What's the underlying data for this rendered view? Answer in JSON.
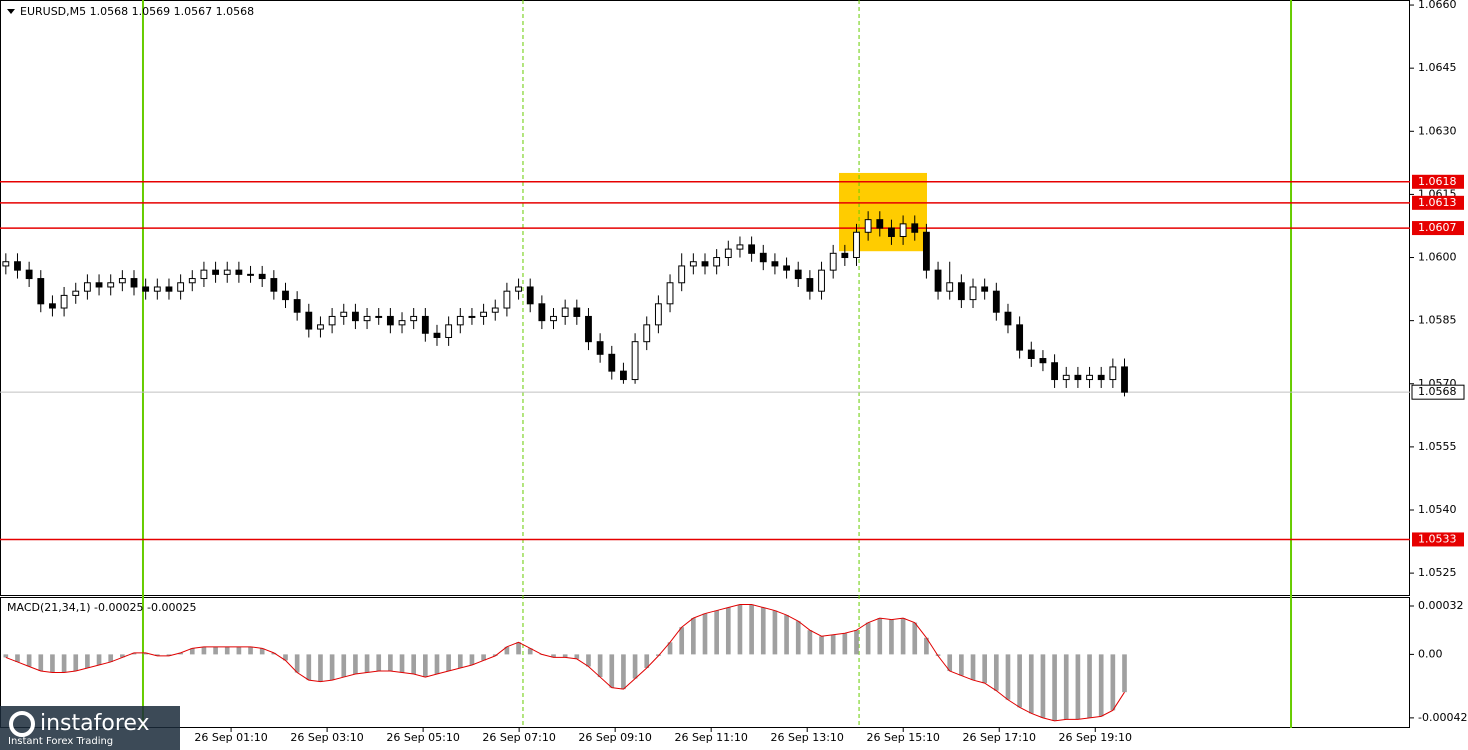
{
  "chart_data": {
    "type": "candlestick",
    "title": "EURUSD,M5  1.0568 1.0569 1.0567 1.0568",
    "ylim": [
      1.05198,
      1.06612
    ],
    "yticks": [
      1.0525,
      {
        "value": 1.054,
        "label": "1.0540"
      },
      1.0555,
      {
        "value": 1.057,
        "label": "1.0570"
      },
      1.0585,
      {
        "value": 1.06,
        "label": "1.0600"
      },
      1.0615,
      {
        "value": 1.063,
        "label": "1.0630"
      },
      1.0645,
      {
        "value": 1.066,
        "label": "1.0660"
      }
    ],
    "xlim": [
      0,
      121
    ],
    "xticks": [
      {
        "value": 19.83,
        "label": "26 Sep 01:10"
      },
      {
        "value": 28.07,
        "label": "26 Sep 03:10"
      },
      {
        "value": 36.31,
        "label": "26 Sep 05:10"
      },
      {
        "value": 44.55,
        "label": "26 Sep 07:10"
      },
      {
        "value": 52.79,
        "label": "26 Sep 09:10"
      },
      {
        "value": 61.03,
        "label": "26 Sep 11:10"
      },
      {
        "value": 69.27,
        "label": "26 Sep 13:10"
      },
      {
        "value": 77.51,
        "label": "26 Sep 15:10"
      },
      {
        "value": 85.75,
        "label": "26 Sep 17:10"
      },
      {
        "value": 93.99,
        "label": "26 Sep 19:10"
      }
    ],
    "ohlc": [
      [
        1.0598,
        1.0601,
        1.0596,
        1.0599
      ],
      [
        1.0599,
        1.0601,
        1.0595,
        1.0597
      ],
      [
        1.0597,
        1.0599,
        1.0593,
        1.0595
      ],
      [
        1.0595,
        1.0597,
        1.0587,
        1.0589
      ],
      [
        1.0589,
        1.0591,
        1.0586,
        1.0588
      ],
      [
        1.0588,
        1.0593,
        1.0586,
        1.0591
      ],
      [
        1.0591,
        1.0594,
        1.0589,
        1.0592
      ],
      [
        1.0592,
        1.0596,
        1.059,
        1.0594
      ],
      [
        1.0594,
        1.0596,
        1.0591,
        1.0593
      ],
      [
        1.0593,
        1.0596,
        1.0591,
        1.0594
      ],
      [
        1.0594,
        1.0597,
        1.0592,
        1.0595
      ],
      [
        1.0595,
        1.0597,
        1.0591,
        1.0593
      ],
      [
        1.0593,
        1.0595,
        1.059,
        1.0592
      ],
      [
        1.0592,
        1.0595,
        1.059,
        1.0593
      ],
      [
        1.0593,
        1.0595,
        1.059,
        1.0592
      ],
      [
        1.0592,
        1.0596,
        1.059,
        1.0594
      ],
      [
        1.0594,
        1.0597,
        1.0592,
        1.0595
      ],
      [
        1.0595,
        1.0599,
        1.0593,
        1.0597
      ],
      [
        1.0597,
        1.0599,
        1.0594,
        1.0596
      ],
      [
        1.0596,
        1.0599,
        1.0594,
        1.0597
      ],
      [
        1.0597,
        1.0599,
        1.0594,
        1.0596
      ],
      [
        1.0596,
        1.0598,
        1.0594,
        1.0596
      ],
      [
        1.0596,
        1.0598,
        1.0593,
        1.0595
      ],
      [
        1.0595,
        1.0597,
        1.059,
        1.0592
      ],
      [
        1.0592,
        1.0594,
        1.0588,
        1.059
      ],
      [
        1.059,
        1.0592,
        1.0585,
        1.0587
      ],
      [
        1.0587,
        1.0589,
        1.0581,
        1.0583
      ],
      [
        1.0583,
        1.0586,
        1.0581,
        1.0584
      ],
      [
        1.0584,
        1.0588,
        1.0582,
        1.0586
      ],
      [
        1.0586,
        1.0589,
        1.0584,
        1.0587
      ],
      [
        1.0587,
        1.0589,
        1.0583,
        1.0585
      ],
      [
        1.0585,
        1.0588,
        1.0583,
        1.0586
      ],
      [
        1.0586,
        1.0588,
        1.0584,
        1.0586
      ],
      [
        1.0586,
        1.0588,
        1.0582,
        1.0584
      ],
      [
        1.0584,
        1.0587,
        1.0582,
        1.0585
      ],
      [
        1.0585,
        1.0588,
        1.0583,
        1.0586
      ],
      [
        1.0586,
        1.0588,
        1.058,
        1.0582
      ],
      [
        1.0582,
        1.0584,
        1.0579,
        1.0581
      ],
      [
        1.0581,
        1.0586,
        1.0579,
        1.0584
      ],
      [
        1.0584,
        1.0588,
        1.0582,
        1.0586
      ],
      [
        1.0586,
        1.0588,
        1.0584,
        1.0586
      ],
      [
        1.0586,
        1.0589,
        1.0584,
        1.0587
      ],
      [
        1.0587,
        1.059,
        1.0585,
        1.0588
      ],
      [
        1.0588,
        1.0594,
        1.0586,
        1.0592
      ],
      [
        1.0592,
        1.0595,
        1.059,
        1.0593
      ],
      [
        1.0593,
        1.0595,
        1.0587,
        1.0589
      ],
      [
        1.0589,
        1.0591,
        1.0583,
        1.0585
      ],
      [
        1.0585,
        1.0588,
        1.0583,
        1.0586
      ],
      [
        1.0586,
        1.059,
        1.0584,
        1.0588
      ],
      [
        1.0588,
        1.059,
        1.0584,
        1.0586
      ],
      [
        1.0586,
        1.0588,
        1.0578,
        1.058
      ],
      [
        1.058,
        1.0582,
        1.0575,
        1.0577
      ],
      [
        1.0577,
        1.0579,
        1.0571,
        1.0573
      ],
      [
        1.0573,
        1.0575,
        1.057,
        1.0571
      ],
      [
        1.0571,
        1.0582,
        1.057,
        1.058
      ],
      [
        1.058,
        1.0586,
        1.0578,
        1.0584
      ],
      [
        1.0584,
        1.0591,
        1.0582,
        1.0589
      ],
      [
        1.0589,
        1.0596,
        1.0587,
        1.0594
      ],
      [
        1.0594,
        1.0601,
        1.0592,
        1.0598
      ],
      [
        1.0598,
        1.0601,
        1.0596,
        1.0599
      ],
      [
        1.0599,
        1.0601,
        1.0596,
        1.0598
      ],
      [
        1.0598,
        1.0602,
        1.0596,
        1.06
      ],
      [
        1.06,
        1.0604,
        1.0598,
        1.0602
      ],
      [
        1.0602,
        1.0605,
        1.06,
        1.0603
      ],
      [
        1.0603,
        1.0605,
        1.0599,
        1.0601
      ],
      [
        1.0601,
        1.0603,
        1.0597,
        1.0599
      ],
      [
        1.0599,
        1.0601,
        1.0596,
        1.0598
      ],
      [
        1.0598,
        1.06,
        1.0595,
        1.0597
      ],
      [
        1.0597,
        1.0599,
        1.0593,
        1.0595
      ],
      [
        1.0595,
        1.0597,
        1.059,
        1.0592
      ],
      [
        1.0592,
        1.0599,
        1.059,
        1.0597
      ],
      [
        1.0597,
        1.0603,
        1.0595,
        1.0601
      ],
      [
        1.0601,
        1.0603,
        1.0598,
        1.06
      ],
      [
        1.06,
        1.0608,
        1.0598,
        1.0606
      ],
      [
        1.0606,
        1.0611,
        1.0604,
        1.0609
      ],
      [
        1.0609,
        1.0611,
        1.0605,
        1.0607
      ],
      [
        1.0607,
        1.0609,
        1.0603,
        1.0605
      ],
      [
        1.0605,
        1.061,
        1.0603,
        1.0608
      ],
      [
        1.0608,
        1.061,
        1.0604,
        1.0606
      ],
      [
        1.0606,
        1.0608,
        1.0595,
        1.0597
      ],
      [
        1.0597,
        1.0599,
        1.059,
        1.0592
      ],
      [
        1.0592,
        1.0599,
        1.059,
        1.0594
      ],
      [
        1.0594,
        1.0596,
        1.0588,
        1.059
      ],
      [
        1.059,
        1.0595,
        1.0588,
        1.0593
      ],
      [
        1.0593,
        1.0595,
        1.059,
        1.0592
      ],
      [
        1.0592,
        1.0594,
        1.0585,
        1.0587
      ],
      [
        1.0587,
        1.0589,
        1.0582,
        1.0584
      ],
      [
        1.0584,
        1.0586,
        1.0576,
        1.0578
      ],
      [
        1.0578,
        1.058,
        1.0574,
        1.0576
      ],
      [
        1.0576,
        1.0578,
        1.0573,
        1.0575
      ],
      [
        1.0575,
        1.0577,
        1.0569,
        1.0571
      ],
      [
        1.0571,
        1.0574,
        1.0569,
        1.0572
      ],
      [
        1.0572,
        1.0574,
        1.0569,
        1.0571
      ],
      [
        1.0571,
        1.0574,
        1.0569,
        1.0572
      ],
      [
        1.0572,
        1.0574,
        1.0569,
        1.0571
      ],
      [
        1.0571,
        1.0576,
        1.0569,
        1.0574
      ],
      [
        1.0574,
        1.0576,
        1.0567,
        1.0568
      ]
    ],
    "levels": [
      {
        "value": 1.0618,
        "color": "#e60000"
      },
      {
        "value": 1.0613,
        "color": "#e60000"
      },
      {
        "value": 1.0607,
        "color": "#e60000"
      },
      {
        "value": 1.0533,
        "color": "#e60000"
      }
    ],
    "current_price": {
      "value": 1.0568,
      "color": "#c0c0c0"
    },
    "vlines": [
      {
        "x": 12.27,
        "style": "solid",
        "color": "#66cc00"
      },
      {
        "x": 44.88,
        "style": "dashed",
        "color": "#66cc00"
      },
      {
        "x": 73.72,
        "style": "dashed",
        "color": "#66cc00"
      },
      {
        "x": 110.79,
        "style": "solid",
        "color": "#66cc00"
      }
    ],
    "highlight": {
      "x": [
        72.0,
        79.55
      ],
      "y": [
        1.06015,
        1.06201
      ],
      "color": "#ffcc00"
    },
    "macd": {
      "title": "MACD(21,34,1) -0.00025 -0.00025",
      "ylim": [
        -0.000487,
        0.000373
      ],
      "yticks": [
        0.00032,
        {
          "value": 0,
          "label": "0.00"
        },
        -0.00042
      ],
      "hist_color": "#a0a0a0",
      "line_color": "#e00000",
      "values": [
        -2e-05,
        -5e-05,
        -8e-05,
        -0.00011,
        -0.00012,
        -0.00012,
        -0.00011,
        -9e-05,
        -7e-05,
        -5e-05,
        -2e-05,
        1e-05,
        1e-05,
        -1e-05,
        -1e-05,
        1e-05,
        4e-05,
        5e-05,
        5e-05,
        5e-05,
        5e-05,
        5e-05,
        4e-05,
        1e-05,
        -4e-05,
        -0.00012,
        -0.00017,
        -0.00018,
        -0.00017,
        -0.00015,
        -0.00013,
        -0.00012,
        -0.00011,
        -0.00011,
        -0.00012,
        -0.00013,
        -0.00015,
        -0.00013,
        -0.00011,
        -9e-05,
        -7e-05,
        -4e-05,
        -1e-05,
        5e-05,
        8e-05,
        4e-05,
        0,
        -2e-05,
        -2e-05,
        -3e-05,
        -8e-05,
        -0.00015,
        -0.00022,
        -0.00023,
        -0.00016,
        -9e-05,
        -1e-05,
        8e-05,
        0.00018,
        0.00024,
        0.00027,
        0.00029,
        0.00031,
        0.00033,
        0.00033,
        0.00031,
        0.00029,
        0.00026,
        0.00022,
        0.00016,
        0.00012,
        0.00013,
        0.00014,
        0.00016,
        0.00021,
        0.00024,
        0.00023,
        0.00024,
        0.00021,
        0.00011,
        -1e-05,
        -0.00011,
        -0.00014,
        -0.00017,
        -0.00019,
        -0.00024,
        -0.0003,
        -0.00035,
        -0.00039,
        -0.00042,
        -0.00044,
        -0.00043,
        -0.00043,
        -0.00042,
        -0.00041,
        -0.00037,
        -0.00025
      ]
    },
    "watermark": {
      "brand": "instaforex",
      "tagline": "Instant Forex Trading"
    }
  }
}
